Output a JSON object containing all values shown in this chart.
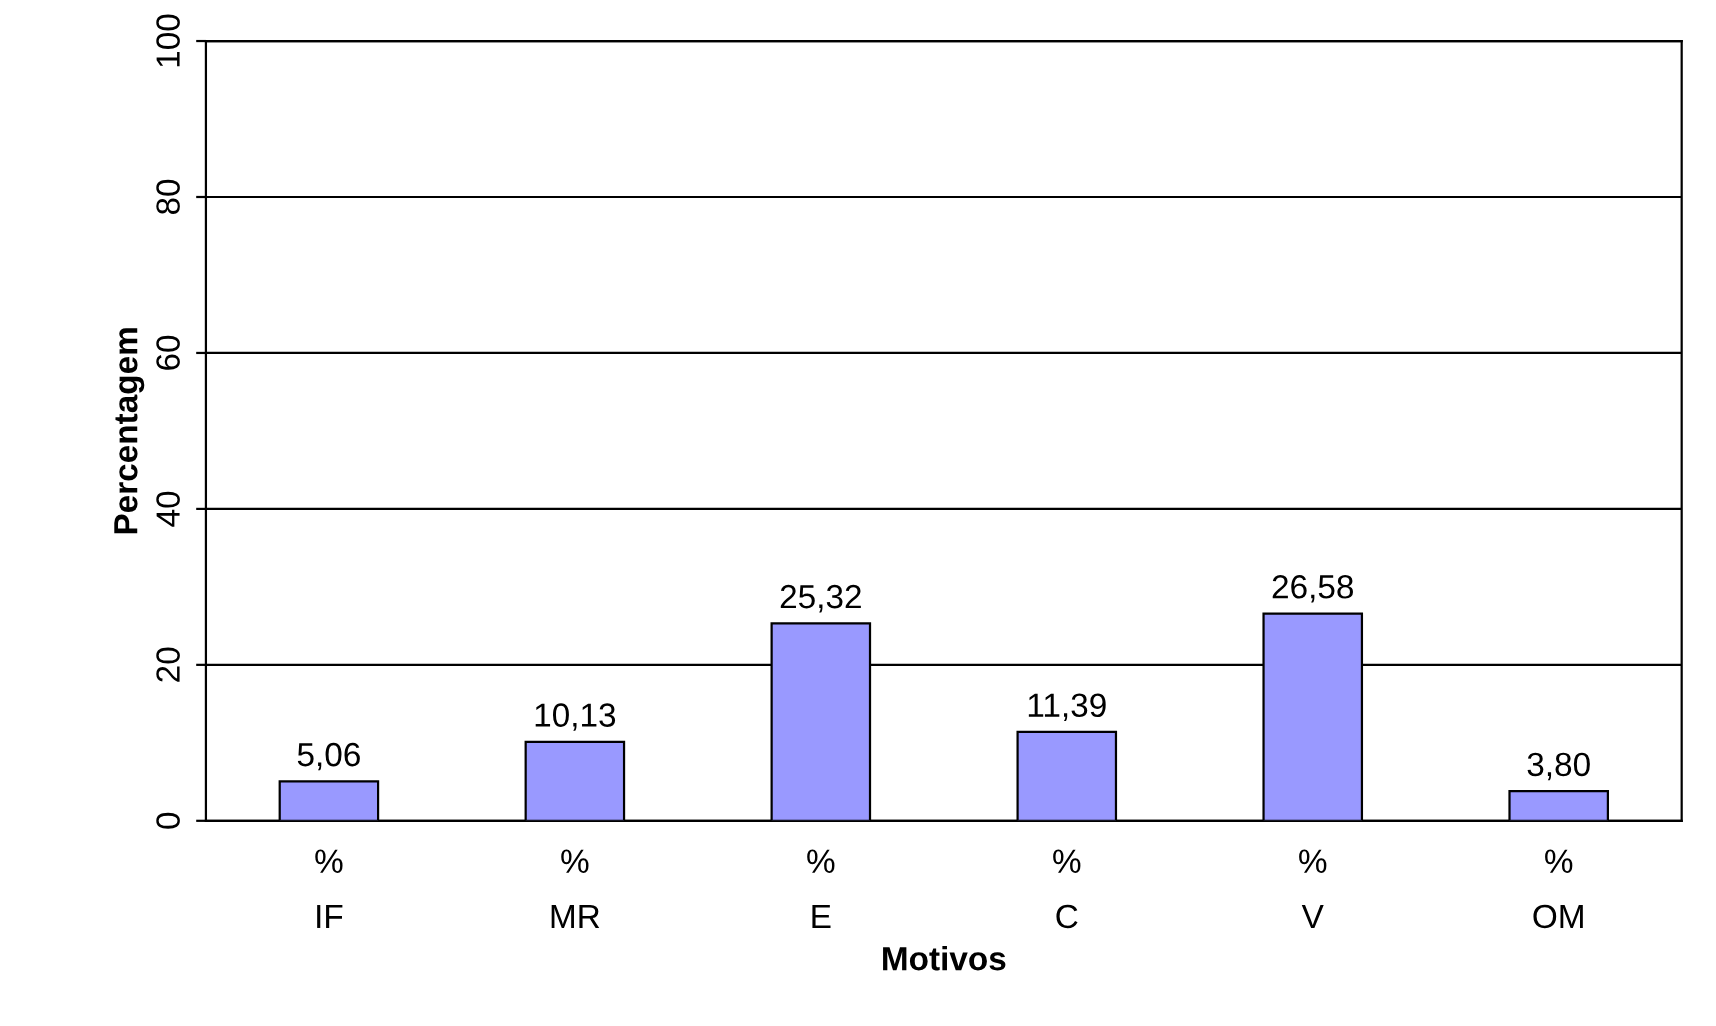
{
  "chart_data": {
    "type": "bar",
    "xlabel": "Motivos",
    "ylabel": "Percentagem",
    "categories": [
      "%\nIF",
      "%\nMR",
      "%\nE",
      "%\nC",
      "%\nV",
      "%\nOM"
    ],
    "values": [
      5.06,
      10.13,
      25.32,
      11.39,
      26.58,
      3.8
    ],
    "value_labels": [
      "5,06",
      "10,13",
      "25,32",
      "11,39",
      "26,58",
      "3,80"
    ],
    "color": "#9999ff",
    "ylim": [
      0,
      100
    ],
    "yticks": [
      0,
      20,
      40,
      60,
      80,
      100
    ],
    "grid": "y",
    "legend": false
  }
}
